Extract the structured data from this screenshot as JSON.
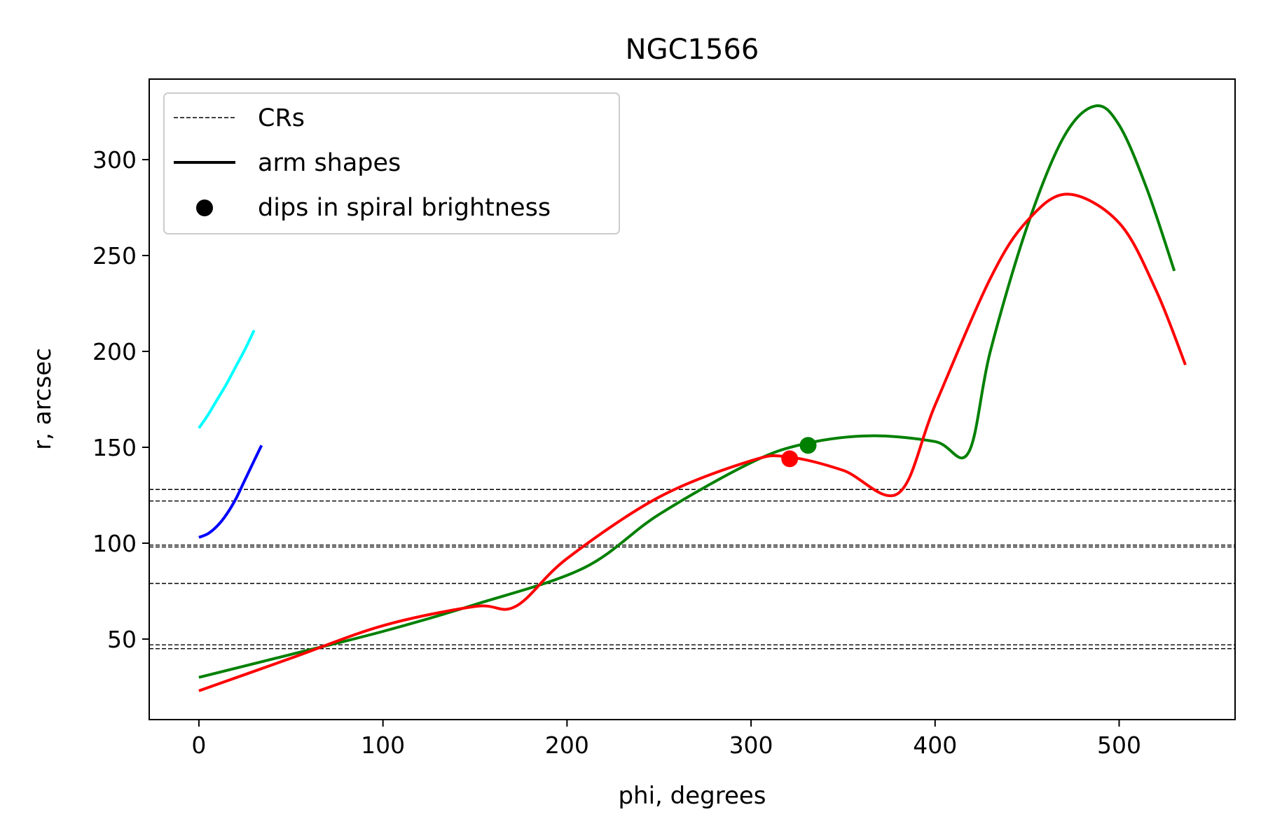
{
  "chart_data": {
    "type": "line",
    "title": "NGC1566",
    "xlabel": "phi, degrees",
    "ylabel": "r, arcsec",
    "xlim": [
      -27,
      563
    ],
    "ylim": [
      8,
      342
    ],
    "xticks": [
      0,
      100,
      200,
      300,
      400,
      500
    ],
    "yticks": [
      50,
      100,
      150,
      200,
      250,
      300
    ],
    "grid": false,
    "legend": {
      "placement": "upper-left",
      "entries": [
        {
          "label": "CRs",
          "style": "dashed"
        },
        {
          "label": "arm shapes",
          "style": "solid"
        },
        {
          "label": "dips in spiral brightness",
          "style": "marker"
        }
      ]
    },
    "cr_lines": [
      45,
      47,
      79,
      98,
      99,
      122,
      128
    ],
    "series": [
      {
        "color": "#00ffff",
        "x": [
          0,
          5,
          10,
          15,
          20,
          25,
          30
        ],
        "y": [
          160,
          167,
          175,
          183,
          192,
          201,
          211
        ]
      },
      {
        "color": "#0000ff",
        "x": [
          0,
          5,
          10,
          15,
          20,
          25,
          30,
          34
        ],
        "y": [
          103,
          105,
          109,
          115,
          123,
          133,
          143,
          151
        ]
      },
      {
        "color": "#008000",
        "x": [
          0,
          50,
          100,
          150,
          209,
          250,
          300,
          330,
          365,
          400,
          418,
          430,
          450,
          470,
          487,
          500,
          515,
          530
        ],
        "y": [
          30,
          42,
          54,
          68,
          87,
          115,
          142,
          152,
          156,
          153,
          147,
          200,
          265,
          312,
          328,
          318,
          285,
          242
        ]
      },
      {
        "color": "#ff0000",
        "x": [
          0,
          50,
          100,
          150,
          172,
          200,
          250,
          300,
          320,
          350,
          380,
          400,
          430,
          450,
          472,
          500,
          520,
          536
        ],
        "y": [
          23,
          40,
          57,
          67,
          67,
          92,
          124,
          143,
          145,
          138,
          126,
          172,
          238,
          268,
          282,
          267,
          232,
          193
        ]
      }
    ],
    "dips": [
      {
        "x": 321,
        "y": 144,
        "color": "#ff0000"
      },
      {
        "x": 331,
        "y": 151,
        "color": "#008000"
      }
    ]
  }
}
